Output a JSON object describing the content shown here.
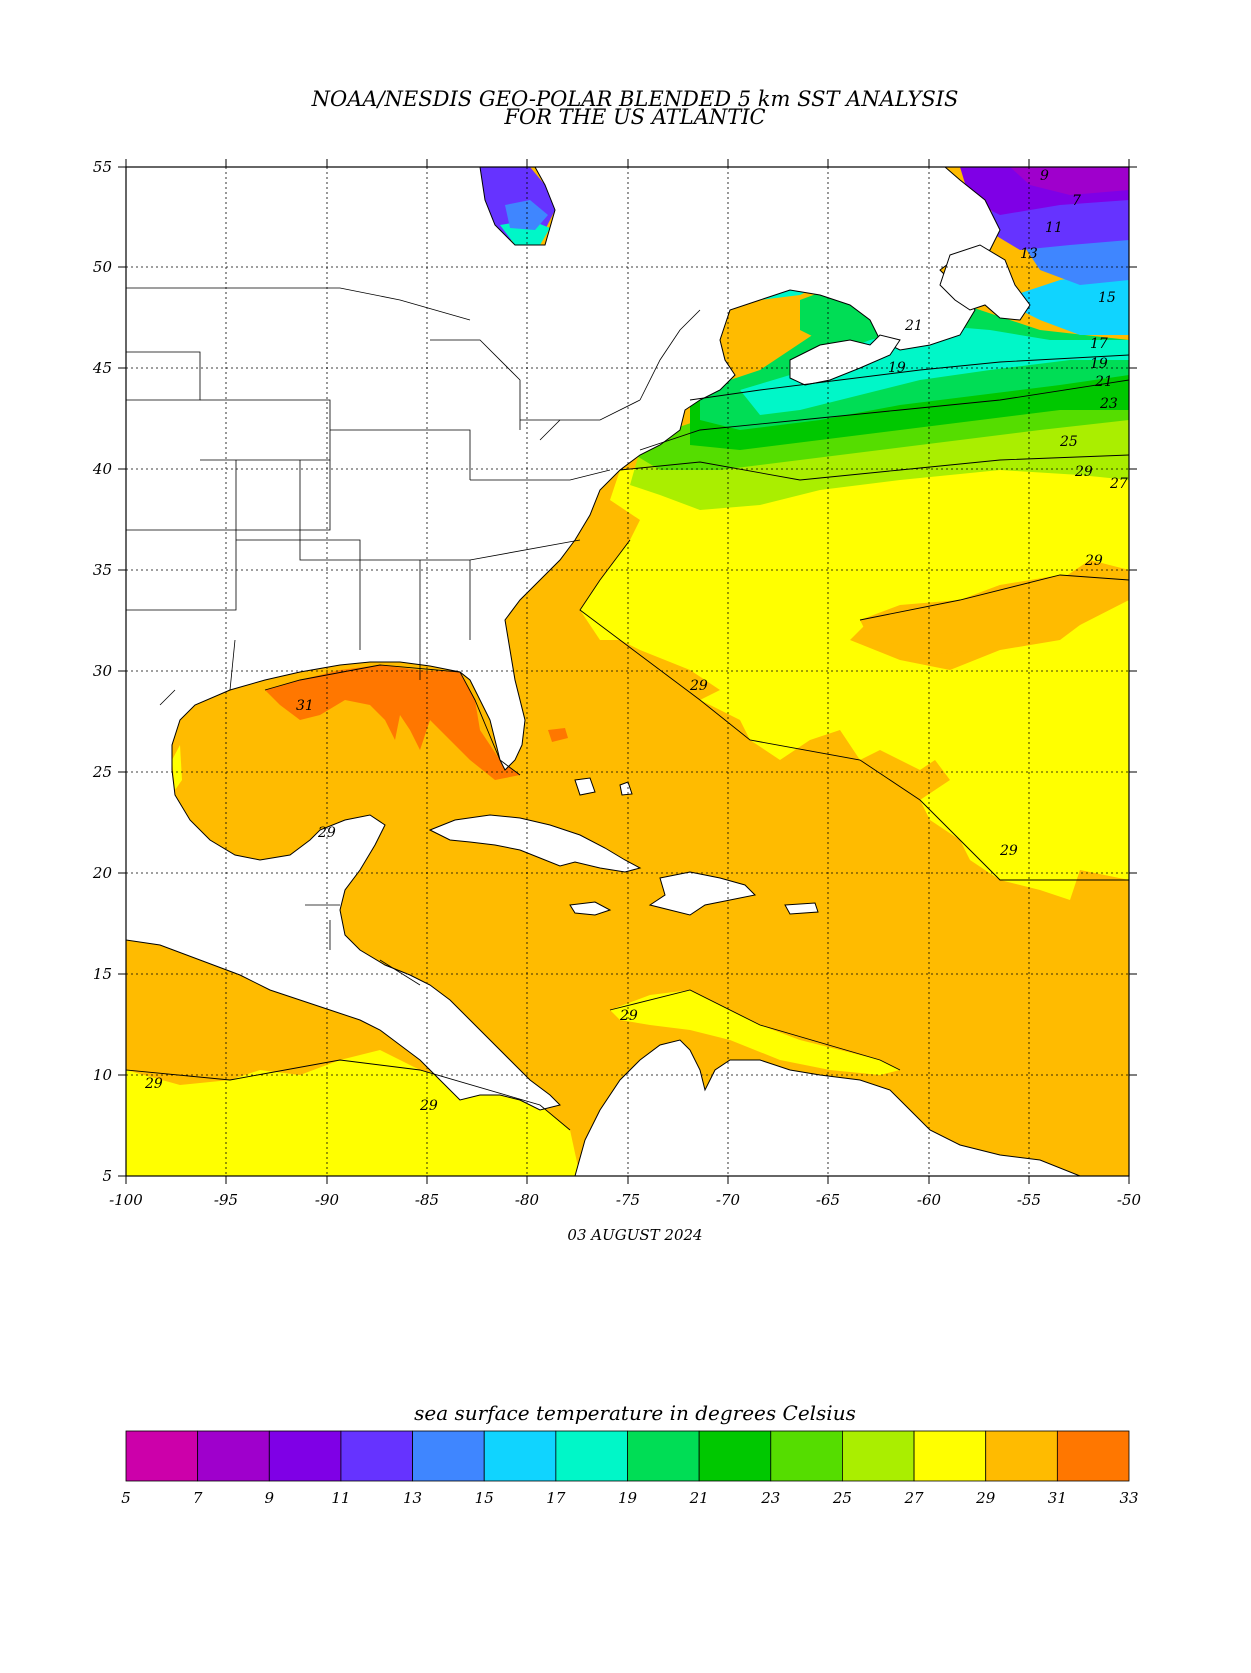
{
  "title": {
    "line1": "NOAA/NESDIS GEO-POLAR BLENDED 5 km SST ANALYSIS",
    "line2": "FOR THE US ATLANTIC"
  },
  "date_label": "03 AUGUST 2024",
  "axes": {
    "x_ticks": [
      "-100",
      "-95",
      "-90",
      "-85",
      "-80",
      "-75",
      "-70",
      "-65",
      "-60",
      "-55",
      "-50"
    ],
    "y_ticks": [
      "55",
      "50",
      "45",
      "40",
      "35",
      "30",
      "25",
      "20",
      "15",
      "10",
      "5"
    ],
    "lon_range": [
      -100,
      -50
    ],
    "lat_range": [
      5,
      55
    ],
    "grid": "dotted"
  },
  "colorbar": {
    "title": "sea surface temperature in degrees Celsius",
    "colors": [
      "#cc00aa",
      "#9f00cc",
      "#7f00e6",
      "#6633ff",
      "#3f86ff",
      "#10d4ff",
      "#00f7c8",
      "#00dd55",
      "#00c800",
      "#55dd00",
      "#aaee00",
      "#ffff00",
      "#ffbb00",
      "#ff7700"
    ],
    "labels": [
      "5",
      "7",
      "9",
      "11",
      "13",
      "15",
      "17",
      "19",
      "21",
      "23",
      "25",
      "27",
      "29",
      "31",
      "33"
    ]
  },
  "contour_labels": [
    {
      "text": "9"
    },
    {
      "text": "7"
    },
    {
      "text": "11"
    },
    {
      "text": "13"
    },
    {
      "text": "15"
    },
    {
      "text": "17"
    },
    {
      "text": "19"
    },
    {
      "text": "21"
    },
    {
      "text": "23"
    },
    {
      "text": "25"
    },
    {
      "text": "27"
    },
    {
      "text": "29"
    },
    {
      "text": "29"
    },
    {
      "text": "29"
    },
    {
      "text": "29"
    },
    {
      "text": "29"
    },
    {
      "text": "29"
    },
    {
      "text": "29"
    },
    {
      "text": "29"
    },
    {
      "text": "31"
    },
    {
      "text": "21"
    },
    {
      "text": "19"
    }
  ]
}
